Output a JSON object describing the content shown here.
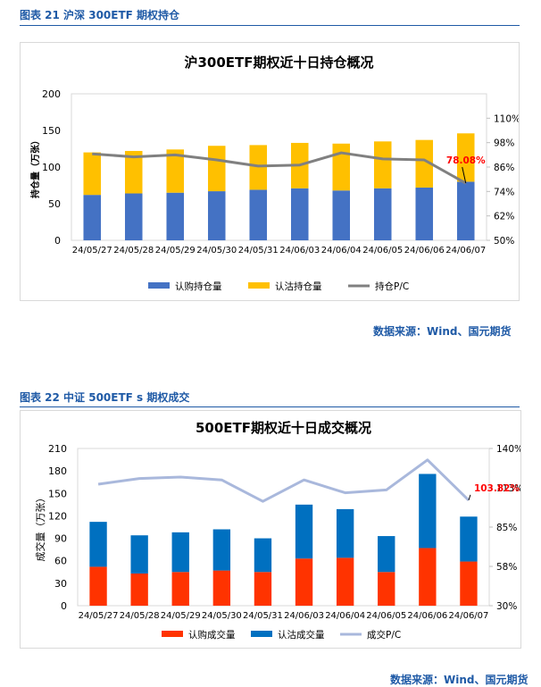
{
  "figures": [
    {
      "caption": "图表 21  沪深 300ETF 期权持仓",
      "source": "数据来源：Wind、国元期货"
    },
    {
      "caption": "图表 22  中证 500ETF s 期权成交",
      "source": "数据来源：Wind、国元期货"
    }
  ],
  "chart_data": [
    {
      "type": "bar",
      "stacked": true,
      "title": "沪300ETF期权近十日持仓概况",
      "ylabel": "持仓量（万张）",
      "categories": [
        "24/05/27",
        "24/05/28",
        "24/05/29",
        "24/05/30",
        "24/05/31",
        "24/06/03",
        "24/06/04",
        "24/06/05",
        "24/06/06",
        "24/06/07"
      ],
      "ylim": [
        0,
        200
      ],
      "yticks": [
        0,
        50,
        100,
        150,
        200
      ],
      "y2lim": [
        50,
        122
      ],
      "y2ticks": [
        "50%",
        "62%",
        "74%",
        "86%",
        "98%",
        "110%"
      ],
      "y2tick_values": [
        50,
        62,
        74,
        86,
        98,
        110
      ],
      "series": [
        {
          "name": "认购持仓量",
          "kind": "bar",
          "color": "#4472c4",
          "values": [
            62,
            64,
            65,
            67,
            69,
            71,
            68,
            71,
            72,
            80
          ]
        },
        {
          "name": "认沽持仓量",
          "kind": "bar",
          "color": "#ffc000",
          "values": [
            58,
            58,
            59,
            62,
            61,
            62,
            64,
            64,
            65,
            66
          ]
        },
        {
          "name": "持仓P/C",
          "kind": "line",
          "axis": "right",
          "color": "#808080",
          "values": [
            92.5,
            91,
            92,
            89.5,
            86.5,
            87,
            93,
            90,
            89.5,
            78.08
          ]
        }
      ],
      "annotation": {
        "text": "78.08%",
        "color": "#ff0000"
      },
      "legend_position": "bottom"
    },
    {
      "type": "bar",
      "stacked": true,
      "title": "500ETF期权近十日成交概况",
      "ylabel": "成交量（万张）",
      "categories": [
        "24/05/27",
        "24/05/28",
        "24/05/29",
        "24/05/30",
        "24/05/31",
        "24/06/03",
        "24/06/04",
        "24/06/05",
        "24/06/06",
        "24/06/07"
      ],
      "ylim": [
        0,
        210
      ],
      "yticks": [
        0,
        30,
        60,
        90,
        120,
        150,
        180,
        210
      ],
      "y2lim": [
        30,
        140
      ],
      "y2ticks": [
        "30%",
        "58%",
        "85%",
        "113%",
        "140%"
      ],
      "y2tick_values": [
        30,
        57.5,
        85,
        112.5,
        140
      ],
      "series": [
        {
          "name": "认购成交量",
          "kind": "bar",
          "color": "#ff3300",
          "values": [
            52,
            43,
            45,
            47,
            45,
            63,
            64,
            45,
            77,
            59
          ]
        },
        {
          "name": "认沽成交量",
          "kind": "bar",
          "color": "#0070c0",
          "values": [
            60,
            51,
            53,
            55,
            45,
            72,
            65,
            48,
            99,
            60
          ]
        },
        {
          "name": "成交P/C",
          "kind": "line",
          "axis": "right",
          "color": "#a9b8dc",
          "values": [
            115,
            119,
            120,
            118,
            103,
            118,
            109,
            111,
            132,
            103.82
          ]
        }
      ],
      "annotation": {
        "text": "103.82%",
        "color": "#ff0000"
      },
      "legend_position": "bottom"
    }
  ]
}
